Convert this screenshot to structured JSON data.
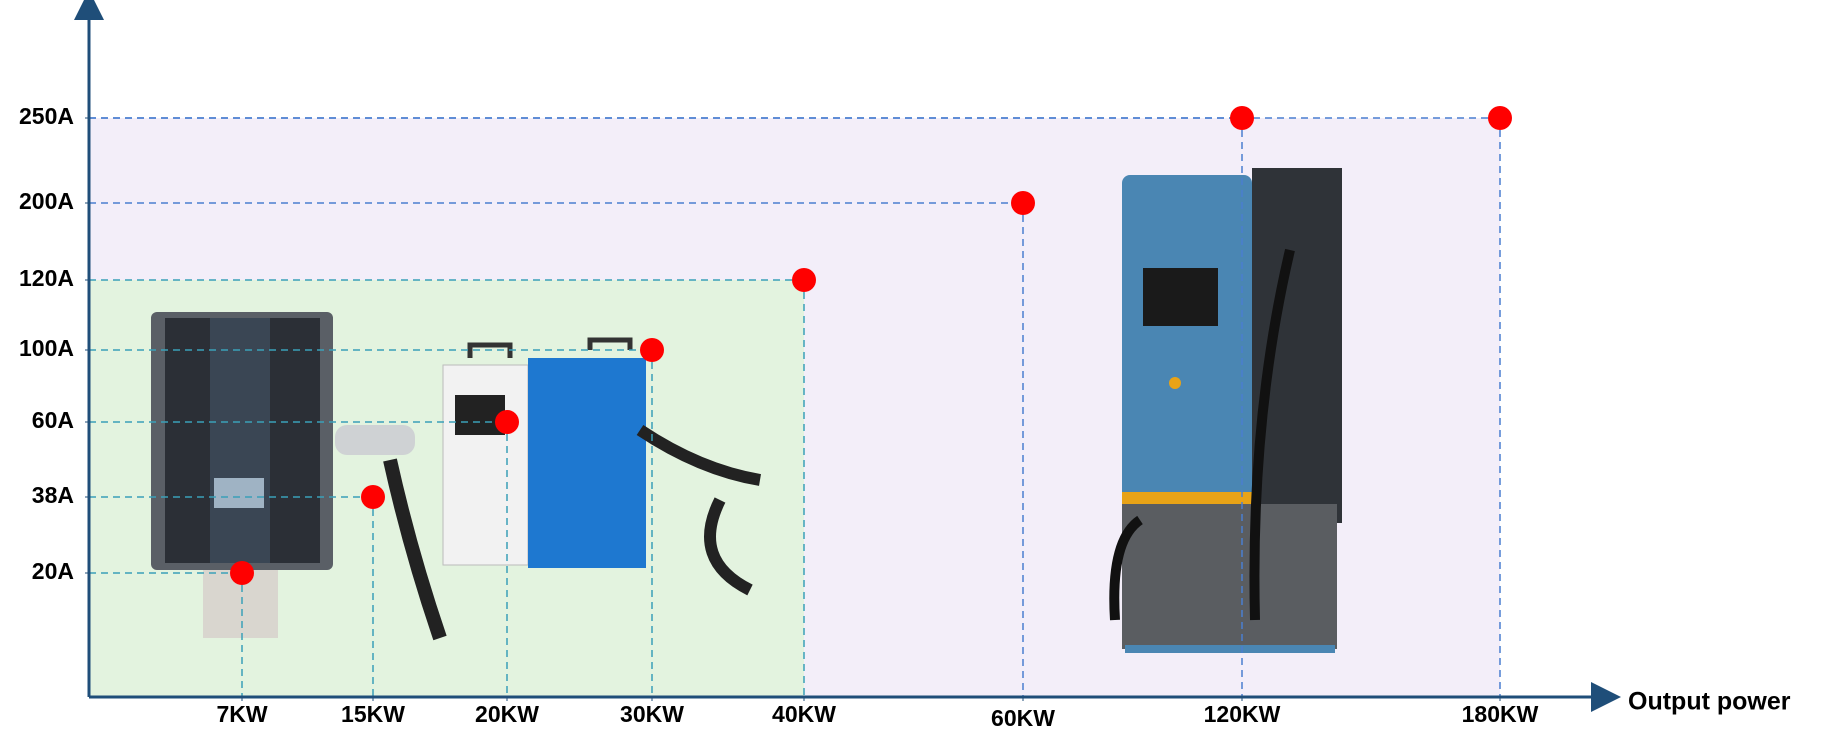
{
  "chart_data": {
    "type": "scatter",
    "xlabel": "Output power",
    "x": [
      7,
      15,
      20,
      30,
      40,
      60,
      120,
      180
    ],
    "values": [
      20,
      38,
      60,
      100,
      120,
      200,
      250,
      250
    ],
    "color": "#ff0000",
    "xticks": [
      {
        "value": 7,
        "label": "7KW"
      },
      {
        "value": 15,
        "label": "15KW"
      },
      {
        "value": 20,
        "label": "20KW"
      },
      {
        "value": 30,
        "label": "30KW"
      },
      {
        "value": 40,
        "label": "40KW"
      },
      {
        "value": 60,
        "label": "60KW"
      },
      {
        "value": 120,
        "label": "120KW"
      },
      {
        "value": 180,
        "label": "180KW"
      }
    ],
    "yticks": [
      {
        "value": 20,
        "label": "20A"
      },
      {
        "value": 38,
        "label": "38A"
      },
      {
        "value": 60,
        "label": "60A"
      },
      {
        "value": 100,
        "label": "100A"
      },
      {
        "value": 120,
        "label": "120A"
      },
      {
        "value": 200,
        "label": "200A"
      },
      {
        "value": 250,
        "label": "250A"
      }
    ]
  }
}
